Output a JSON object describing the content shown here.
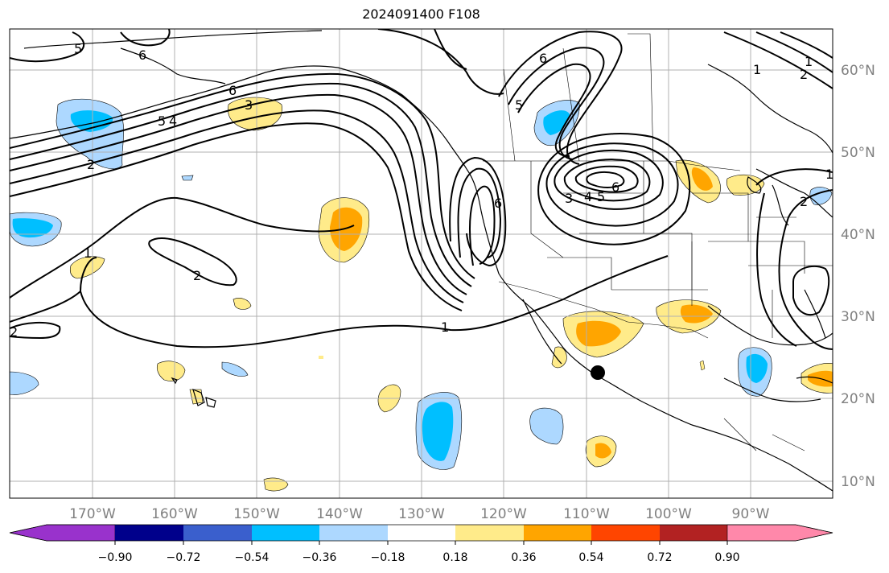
{
  "title": "2024091400 F108",
  "map": {
    "lon_ticks": [
      "170°W",
      "160°W",
      "150°W",
      "140°W",
      "130°W",
      "120°W",
      "110°W",
      "100°W",
      "90°W"
    ],
    "lat_ticks": [
      "60°N",
      "50°N",
      "40°N",
      "30°N",
      "20°N",
      "10°N"
    ],
    "contour_labels": [
      "5",
      "6",
      "2",
      "2",
      "1",
      "1",
      "2",
      "3",
      "5",
      "4",
      "6",
      "3",
      "4",
      "5",
      "6",
      "5",
      "6",
      "1",
      "1",
      "2",
      "1",
      "2",
      "6"
    ],
    "marker": "storm-center-dot"
  },
  "colorbar": {
    "labels": [
      "−0.90",
      "−0.72",
      "−0.54",
      "−0.36",
      "−0.18",
      "0.18",
      "0.36",
      "0.54",
      "0.72",
      "0.90"
    ],
    "colors": [
      "#9932cc",
      "#00008b",
      "#3a5fcd",
      "#00bfff",
      "#add8ff",
      "#ffffff",
      "#ffeb8a",
      "#ffa500",
      "#ff4500",
      "#b22222",
      "#ff88aa"
    ]
  }
}
